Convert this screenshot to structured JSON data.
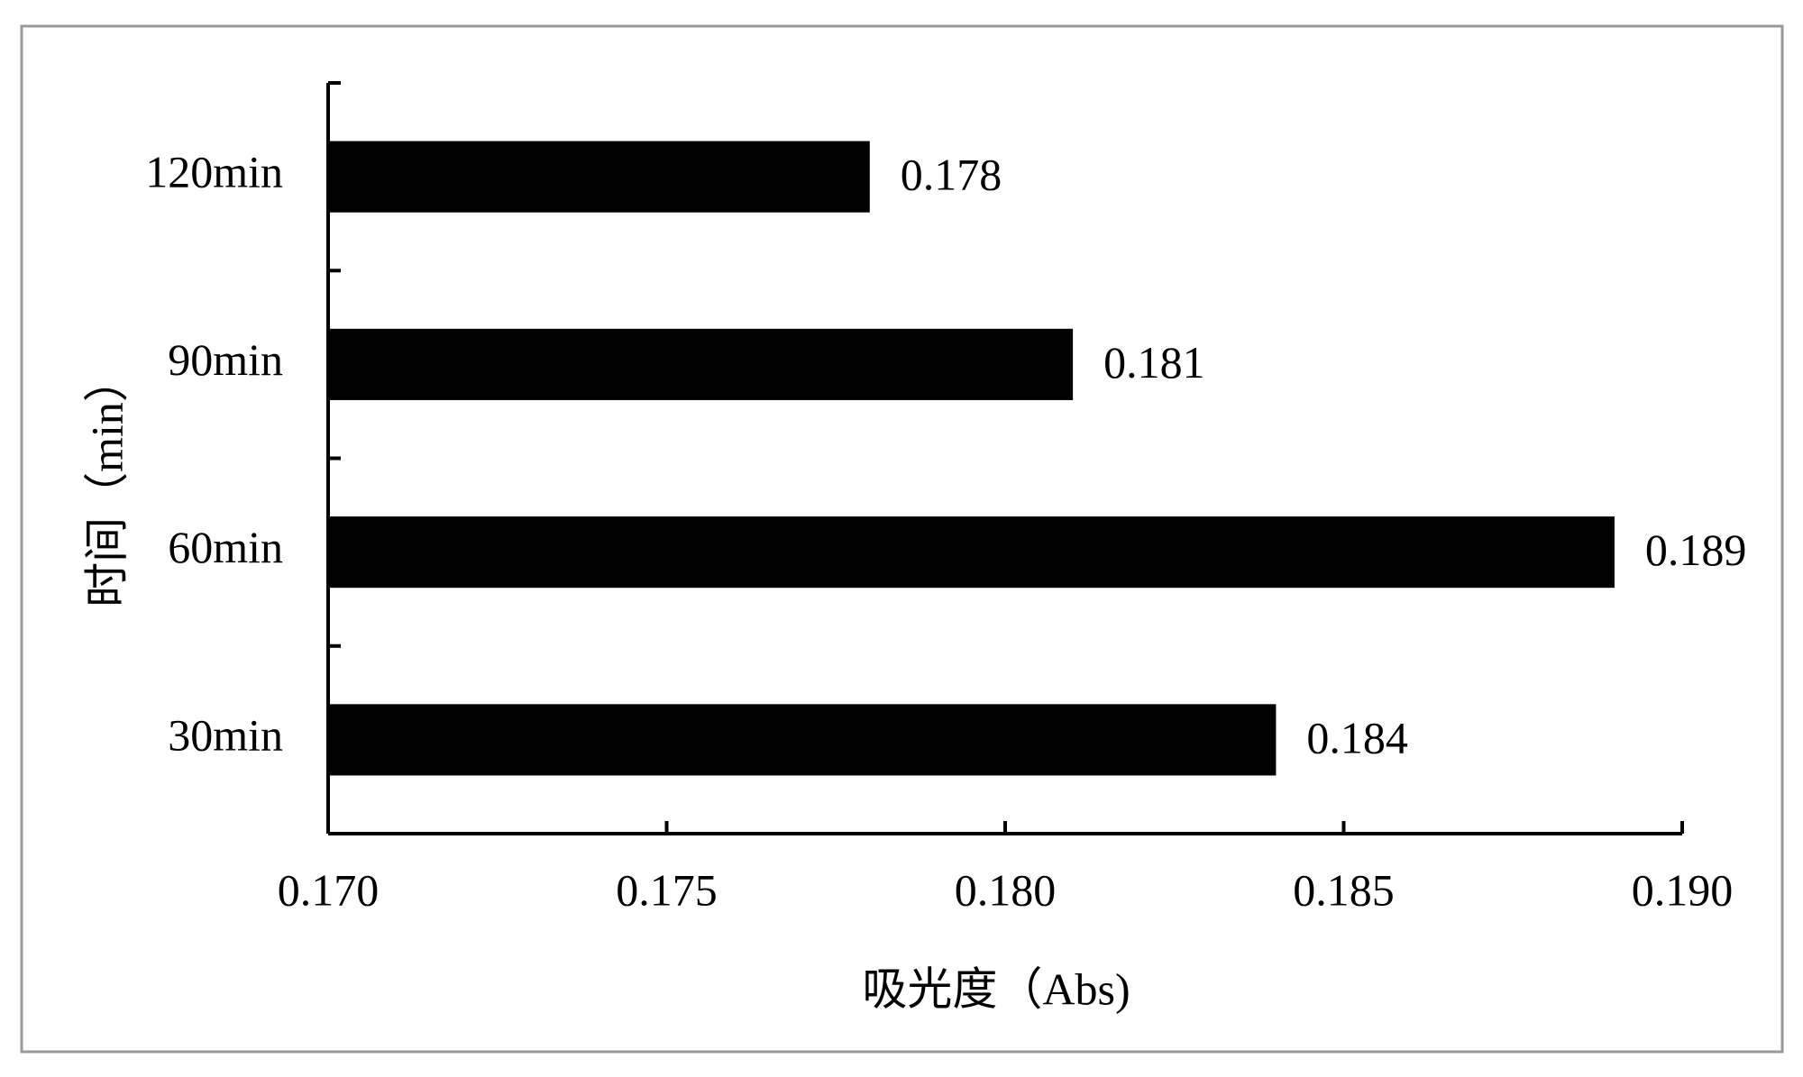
{
  "chart_data": {
    "type": "bar",
    "orientation": "horizontal",
    "xlabel": "吸光度（Abs)",
    "ylabel": "时间（min）",
    "categories": [
      "30min",
      "60min",
      "90min",
      "120min"
    ],
    "values": [
      0.184,
      0.189,
      0.181,
      0.178
    ],
    "color": "#000000",
    "xlim": [
      0.17,
      0.19
    ],
    "xticks": [
      {
        "value": 0.17,
        "label": "0.170"
      },
      {
        "value": 0.175,
        "label": "0.175"
      },
      {
        "value": 0.18,
        "label": "0.180"
      },
      {
        "value": 0.185,
        "label": "0.185"
      },
      {
        "value": 0.19,
        "label": "0.190"
      }
    ],
    "grid": false
  }
}
